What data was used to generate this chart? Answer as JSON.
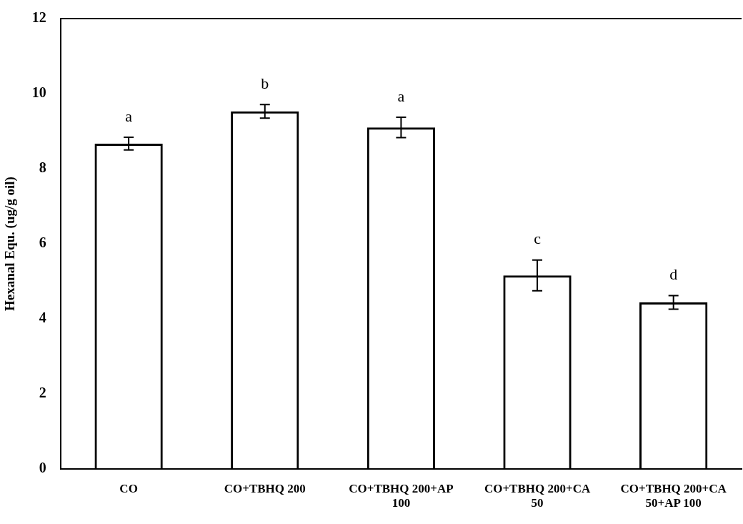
{
  "chart_data": {
    "type": "bar",
    "ylabel": "Hexanal Equ. (ug/g oil)",
    "categories": [
      "CO",
      "CO+TBHQ 200",
      "CO+TBHQ 200+AP 100",
      "CO+TBHQ 200+CA 50",
      "CO+TBHQ 200+CA 50+AP 100"
    ],
    "values": [
      8.67,
      9.53,
      9.1,
      5.16,
      4.44
    ],
    "errors": [
      0.17,
      0.18,
      0.27,
      0.41,
      0.18
    ],
    "color": "#000000",
    "ylim": [
      0,
      12
    ],
    "yticks": [
      0,
      2,
      4,
      6,
      8,
      10,
      12
    ],
    "grid": false,
    "legend": false,
    "annotations": [
      "a",
      "b",
      "a",
      "c",
      "d"
    ]
  }
}
